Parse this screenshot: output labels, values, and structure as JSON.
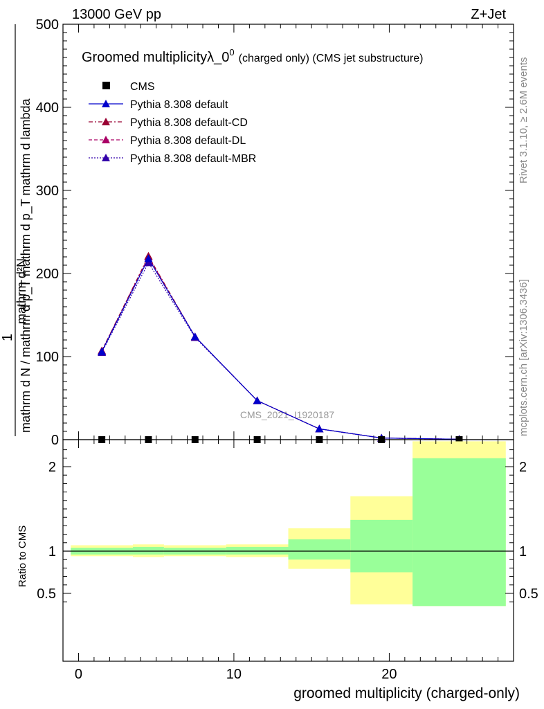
{
  "header": {
    "left": "13000 GeV pp",
    "right": "Z+Jet"
  },
  "side_labels": {
    "rivet": "Rivet 3.1.10, ≥ 2.6M events",
    "mcplots": "mcplots.cern.ch [arXiv:1306.3436]"
  },
  "watermark": "CMS_2021_I1920187",
  "colors": {
    "default": "#0000cc",
    "cd": "#990033",
    "dl": "#aa0066",
    "mbr": "#3300aa",
    "band_yellow": "#ffff99",
    "band_green": "#99ff99"
  },
  "chart_data": [
    {
      "type": "line",
      "title": "Groomed multiplicityλ_0⁰ (charged only) (CMS jet substructure)",
      "title_main": "Groomed multiplicityλ_0",
      "title_sup": "0",
      "title_rest": "(charged only) (CMS jet substructure)",
      "ylabel_numerator": "1",
      "ylabel_denominator": "mathrm d N / mathrm d p_T mathrm d p_T mathrm d lambda",
      "ylabel_extra": "mathrm d²N",
      "ylim": [
        0,
        500
      ],
      "yticks": [
        "0",
        "100",
        "200",
        "300",
        "400",
        "500"
      ],
      "xlim": [
        -1,
        28
      ],
      "x": [
        1.5,
        4.5,
        7.5,
        11.5,
        15.5,
        19.5,
        24.5
      ],
      "legend": [
        {
          "name": "CMS",
          "marker": "square"
        },
        {
          "name": "Pythia 8.308 default",
          "marker": "triangle",
          "style": "solid"
        },
        {
          "name": "Pythia 8.308 default-CD",
          "marker": "triangle",
          "style": "dashdot"
        },
        {
          "name": "Pythia 8.308 default-DL",
          "marker": "triangle",
          "style": "dashed"
        },
        {
          "name": "Pythia 8.308 default-MBR",
          "marker": "triangle",
          "style": "dotted"
        }
      ],
      "series": [
        {
          "name": "CMS",
          "values": [
            0.0,
            0.0,
            0.0,
            0.0,
            0.0,
            0.0,
            0.0
          ]
        },
        {
          "name": "Pythia 8.308 default",
          "values": [
            106,
            218,
            124,
            47,
            13,
            2,
            0.5
          ]
        },
        {
          "name": "Pythia 8.308 default-CD",
          "values": [
            107,
            221,
            124,
            47,
            13,
            2,
            0.5
          ]
        },
        {
          "name": "Pythia 8.308 default-DL",
          "values": [
            107,
            220,
            124,
            47,
            13,
            2,
            0.5
          ]
        },
        {
          "name": "Pythia 8.308 default-MBR",
          "values": [
            105,
            213,
            123,
            47,
            13,
            2,
            0.5
          ]
        }
      ]
    },
    {
      "type": "area",
      "ylabel": "Ratio to CMS",
      "xlabel": "groomed multiplicity (charged-only)",
      "xlim": [
        -1,
        28
      ],
      "xticks": [
        "0",
        "10",
        "20"
      ],
      "ylim": [
        0.35,
        2.3
      ],
      "yticks": [
        "0.5",
        "1",
        "2"
      ],
      "bins": [
        {
          "lo": -0.5,
          "hi": 3.5,
          "yellow": [
            0.94,
            1.07
          ],
          "green": [
            0.96,
            1.04
          ]
        },
        {
          "lo": 3.5,
          "hi": 5.5,
          "yellow": [
            0.93,
            1.08
          ],
          "green": [
            0.96,
            1.05
          ]
        },
        {
          "lo": 5.5,
          "hi": 9.5,
          "yellow": [
            0.94,
            1.07
          ],
          "green": [
            0.96,
            1.04
          ]
        },
        {
          "lo": 9.5,
          "hi": 13.5,
          "yellow": [
            0.93,
            1.08
          ],
          "green": [
            0.96,
            1.05
          ]
        },
        {
          "lo": 13.5,
          "hi": 17.5,
          "yellow": [
            0.79,
            1.27
          ],
          "green": [
            0.9,
            1.14
          ]
        },
        {
          "lo": 17.5,
          "hi": 21.5,
          "yellow": [
            0.37,
            1.65
          ],
          "green": [
            0.75,
            1.37
          ]
        },
        {
          "lo": 21.5,
          "hi": 27.5,
          "yellow": [
            0.35,
            2.3
          ],
          "green": [
            0.35,
            2.1
          ]
        }
      ]
    }
  ]
}
